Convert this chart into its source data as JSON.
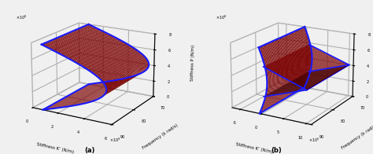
{
  "subplot_a": {
    "ylabel_freq": "Frequency (k rad/s)",
    "xlabel_K": "Stiffness K’ (N/m)",
    "zlabel_P": "Stiffness P (N/m)",
    "label": "(a)",
    "freq_range": [
      70,
      90
    ],
    "K_range": [
      0,
      6000000000.0
    ],
    "P_range": [
      0,
      800000000.0
    ],
    "Kticks": [
      0,
      2000000000.0,
      4000000000.0,
      6000000000.0
    ],
    "Ktick_labels": [
      "0",
      "2",
      "4",
      "6"
    ],
    "Kexp": "x10⁹",
    "freq_ticks": [
      70,
      80,
      90
    ],
    "Pticks": [
      0,
      200000000.0,
      400000000.0,
      600000000.0,
      800000000.0
    ],
    "Ptick_labels": [
      "0",
      "2",
      "4",
      "6",
      "8"
    ],
    "Pexp": "x10⁸",
    "elev": 18,
    "azim": -60
  },
  "subplot_b": {
    "ylabel_freq": "Frequency (k rad/s)",
    "xlabel_K": "Stiffness K’ (N/m)",
    "zlabel_P": "Stiffness P (N/m)",
    "label": "(b)",
    "freq_range": [
      70,
      90
    ],
    "K_range": [
      -700000.0,
      1100000.0
    ],
    "P_range": [
      0,
      800000000.0
    ],
    "Kticks": [
      -500000.0,
      0,
      500000.0,
      1000000.0
    ],
    "Ktick_labels": [
      "-5",
      "0",
      "5",
      "10"
    ],
    "Kexp": "x10⁵",
    "freq_ticks": [
      70,
      80,
      90
    ],
    "Pticks": [
      0,
      200000000.0,
      400000000.0,
      600000000.0,
      800000000.0
    ],
    "Ptick_labels": [
      "0",
      "2",
      "4",
      "6",
      "8"
    ],
    "Pexp": "x10⁸",
    "elev": 18,
    "azim": -60
  },
  "surface_facecolor": "#8b0000",
  "edge_color": "#1a1aff",
  "bg_color": "#f0f0f0",
  "figsize": [
    4.74,
    1.96
  ],
  "dpi": 100
}
